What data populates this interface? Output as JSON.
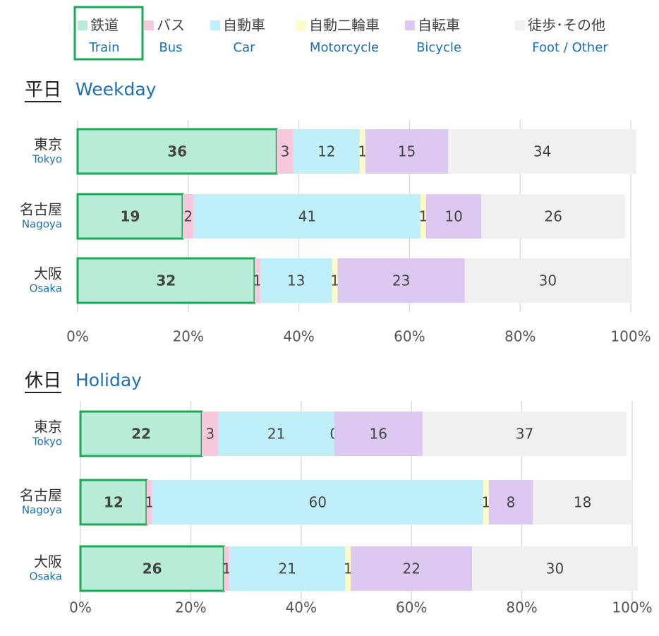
{
  "chart_data": [
    {
      "type": "stacked-bar-horizontal",
      "title": "平日",
      "subtitle": "Weekday",
      "categories": [
        "東京",
        "名古屋",
        "大阪"
      ],
      "categories_en": [
        "Tokyo",
        "Nagoya",
        "Osaka"
      ],
      "series": [
        {
          "name": "鉄道",
          "name_en": "Train",
          "color": "#b8ecd8",
          "values": [
            36,
            19,
            32
          ]
        },
        {
          "name": "バス",
          "name_en": "Bus",
          "color": "#f8c8dc",
          "values": [
            3,
            2,
            1
          ]
        },
        {
          "name": "自動車",
          "name_en": "Car",
          "color": "#bff0fa",
          "values": [
            12,
            41,
            13
          ]
        },
        {
          "name": "自動二輪車",
          "name_en": "Motorcycle",
          "color": "#fdfcc6",
          "values": [
            1,
            1,
            1
          ]
        },
        {
          "name": "自転車",
          "name_en": "Bicycle",
          "color": "#dcc8f0",
          "values": [
            15,
            10,
            23
          ]
        },
        {
          "name": "徒歩･その他",
          "name_en": "Foot / Other",
          "color": "#f0f0f0",
          "values": [
            34,
            26,
            30
          ]
        }
      ],
      "xlim": [
        0,
        100
      ],
      "xticks": [
        {
          "value": 0,
          "label": "0%"
        },
        {
          "value": 20,
          "label": "20%"
        },
        {
          "value": 40,
          "label": "40%"
        },
        {
          "value": 60,
          "label": "60%"
        },
        {
          "value": 80,
          "label": "80%"
        },
        {
          "value": 100,
          "label": "100%"
        }
      ],
      "grid": true
    },
    {
      "type": "stacked-bar-horizontal",
      "title": "休日",
      "subtitle": "Holiday",
      "categories": [
        "東京",
        "名古屋",
        "大阪"
      ],
      "categories_en": [
        "Tokyo",
        "Nagoya",
        "Osaka"
      ],
      "series": [
        {
          "values": [
            22,
            12,
            26
          ]
        },
        {
          "values": [
            3,
            1,
            1
          ]
        },
        {
          "values": [
            21,
            60,
            21
          ]
        },
        {
          "values": [
            0,
            1,
            1
          ]
        },
        {
          "values": [
            16,
            8,
            22
          ]
        },
        {
          "values": [
            37,
            18,
            30
          ]
        }
      ],
      "xlim": [
        0,
        100
      ],
      "xticks": [
        {
          "value": 0,
          "label": "0%"
        },
        {
          "value": 20,
          "label": "20%"
        },
        {
          "value": 40,
          "label": "40%"
        },
        {
          "value": 60,
          "label": "60%"
        },
        {
          "value": 80,
          "label": "80%"
        },
        {
          "value": 100,
          "label": "100%"
        }
      ],
      "grid": true
    }
  ]
}
